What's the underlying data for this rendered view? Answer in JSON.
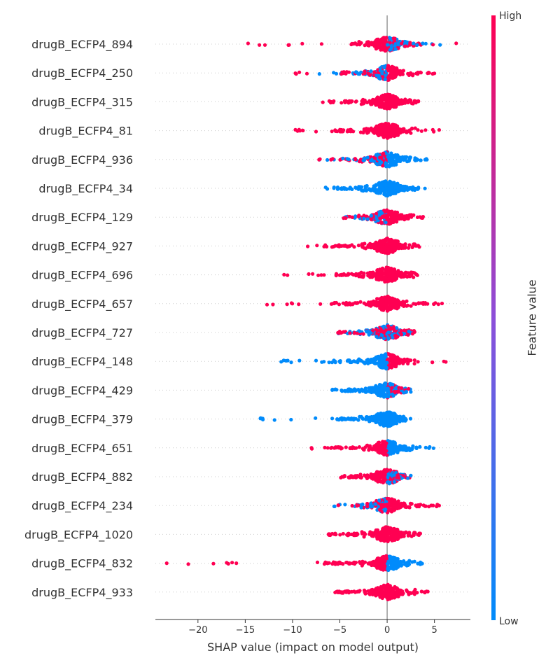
{
  "chart_data": {
    "type": "scatter",
    "subtype": "beeswarm",
    "xlabel": "SHAP value (impact on model output)",
    "xlim": [
      -24.5,
      8.8
    ],
    "xticks": [
      -20,
      -15,
      -10,
      -5,
      0,
      5
    ],
    "xtick_labels": [
      "−20",
      "−15",
      "−10",
      "−5",
      "0",
      "5"
    ],
    "colorbar": {
      "title": "Feature value",
      "high_label": "High",
      "low_label": "Low",
      "high_color": "#ff0052",
      "low_color": "#008bfb"
    },
    "features": [
      {
        "name": "drugB_ECFP4_894",
        "min": -14.7,
        "max": 7.3,
        "core": [
          -3.8,
          4.0
        ],
        "left_color": "high",
        "right_color": "mixed"
      },
      {
        "name": "drugB_ECFP4_250",
        "min": -9.7,
        "max": 5.0,
        "core": [
          -5.0,
          3.7
        ],
        "left_color": "mixed",
        "right_color": "high"
      },
      {
        "name": "drugB_ECFP4_315",
        "min": -6.8,
        "max": 3.3,
        "core": [
          -4.5,
          2.8
        ],
        "left_color": "high",
        "right_color": "high"
      },
      {
        "name": "drugB_ECFP4_81",
        "min": -9.7,
        "max": 5.5,
        "core": [
          -6.0,
          3.5
        ],
        "left_color": "high",
        "right_color": "high"
      },
      {
        "name": "drugB_ECFP4_936",
        "min": -7.2,
        "max": 4.2,
        "core": [
          -5.0,
          3.3
        ],
        "left_color": "mixed",
        "right_color": "low"
      },
      {
        "name": "drugB_ECFP4_34",
        "min": -6.5,
        "max": 4.0,
        "core": [
          -5.0,
          3.0
        ],
        "left_color": "low",
        "right_color": "low"
      },
      {
        "name": "drugB_ECFP4_129",
        "min": -4.6,
        "max": 3.8,
        "core": [
          -3.5,
          3.5
        ],
        "left_color": "mixed",
        "right_color": "high"
      },
      {
        "name": "drugB_ECFP4_927",
        "min": -8.4,
        "max": 3.4,
        "core": [
          -5.5,
          2.8
        ],
        "left_color": "high",
        "right_color": "high"
      },
      {
        "name": "drugB_ECFP4_696",
        "min": -10.9,
        "max": 3.2,
        "core": [
          -5.5,
          2.8
        ],
        "left_color": "high",
        "right_color": "high"
      },
      {
        "name": "drugB_ECFP4_657",
        "min": -12.7,
        "max": 5.8,
        "core": [
          -6.0,
          4.5
        ],
        "left_color": "high",
        "right_color": "high"
      },
      {
        "name": "drugB_ECFP4_727",
        "min": -5.2,
        "max": 2.9,
        "core": [
          -4.5,
          2.5
        ],
        "left_color": "mixed",
        "right_color": "mixed"
      },
      {
        "name": "drugB_ECFP4_148",
        "min": -11.2,
        "max": 6.2,
        "core": [
          -7.0,
          3.0
        ],
        "left_color": "low",
        "right_color": "high"
      },
      {
        "name": "drugB_ECFP4_429",
        "min": -5.8,
        "max": 2.5,
        "core": [
          -5.0,
          2.0
        ],
        "left_color": "low",
        "right_color": "mixed"
      },
      {
        "name": "drugB_ECFP4_379",
        "min": -13.4,
        "max": 1.8,
        "core": [
          -6.0,
          1.5
        ],
        "left_color": "low",
        "right_color": "low"
      },
      {
        "name": "drugB_ECFP4_651",
        "min": -8.0,
        "max": 4.9,
        "core": [
          -5.5,
          3.2
        ],
        "left_color": "high",
        "right_color": "low"
      },
      {
        "name": "drugB_ECFP4_882",
        "min": -4.9,
        "max": 2.5,
        "core": [
          -4.0,
          2.0
        ],
        "left_color": "high",
        "right_color": "mixed"
      },
      {
        "name": "drugB_ECFP4_234",
        "min": -5.6,
        "max": 5.5,
        "core": [
          -3.5,
          4.5
        ],
        "left_color": "mixed",
        "right_color": "high"
      },
      {
        "name": "drugB_ECFP4_1020",
        "min": -6.2,
        "max": 3.5,
        "core": [
          -6.0,
          3.0
        ],
        "left_color": "high",
        "right_color": "high"
      },
      {
        "name": "drugB_ECFP4_832",
        "min": -23.3,
        "max": 3.7,
        "core": [
          -7.5,
          3.5
        ],
        "left_color": "high",
        "right_color": "low"
      },
      {
        "name": "drugB_ECFP4_933",
        "min": -5.5,
        "max": 4.3,
        "core": [
          -5.0,
          3.5
        ],
        "left_color": "high",
        "right_color": "high"
      }
    ]
  }
}
